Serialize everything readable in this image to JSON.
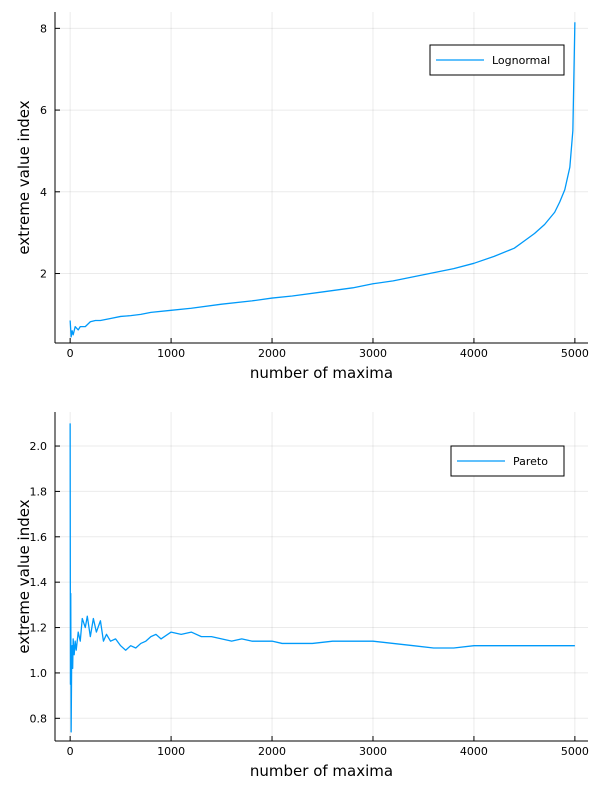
{
  "chart_data": [
    {
      "type": "line",
      "id": "top",
      "xlabel": "number of maxima",
      "ylabel": "extreme value index",
      "xlim": [
        -150,
        5130
      ],
      "ylim": [
        0.3,
        8.4
      ],
      "xticks": [
        0,
        1000,
        2000,
        3000,
        4000,
        5000
      ],
      "xtick_labels": [
        "0",
        "1000",
        "2000",
        "3000",
        "4000",
        "5000"
      ],
      "yticks": [
        2,
        4,
        6,
        8
      ],
      "ytick_labels": [
        "2",
        "4",
        "6",
        "8"
      ],
      "grid": true,
      "legend_position": "top-right",
      "series": [
        {
          "name": "Lognormal",
          "color": "#009AFA",
          "x": [
            0,
            10,
            20,
            30,
            50,
            80,
            100,
            150,
            200,
            250,
            300,
            400,
            500,
            600,
            700,
            800,
            1000,
            1200,
            1500,
            1800,
            2000,
            2200,
            2500,
            2800,
            3000,
            3200,
            3500,
            3800,
            4000,
            4200,
            4400,
            4500,
            4600,
            4700,
            4800,
            4850,
            4900,
            4950,
            4980,
            5000
          ],
          "y": [
            0.85,
            0.45,
            0.6,
            0.5,
            0.7,
            0.62,
            0.7,
            0.7,
            0.82,
            0.85,
            0.85,
            0.9,
            0.95,
            0.97,
            1.0,
            1.05,
            1.1,
            1.15,
            1.25,
            1.33,
            1.4,
            1.45,
            1.55,
            1.65,
            1.75,
            1.82,
            1.97,
            2.12,
            2.25,
            2.42,
            2.62,
            2.8,
            2.98,
            3.2,
            3.5,
            3.75,
            4.05,
            4.6,
            5.5,
            8.15
          ]
        }
      ]
    },
    {
      "type": "line",
      "id": "bottom",
      "xlabel": "number of maxima",
      "ylabel": "extreme value index",
      "xlim": [
        -150,
        5130
      ],
      "ylim": [
        0.7,
        2.15
      ],
      "xticks": [
        0,
        1000,
        2000,
        3000,
        4000,
        5000
      ],
      "xtick_labels": [
        "0",
        "1000",
        "2000",
        "3000",
        "4000",
        "5000"
      ],
      "yticks": [
        0.8,
        1.0,
        1.2,
        1.4,
        1.6,
        1.8,
        2.0
      ],
      "ytick_labels": [
        "0.8",
        "1.0",
        "1.2",
        "1.4",
        "1.6",
        "1.8",
        "2.0"
      ],
      "grid": true,
      "legend_position": "top-right",
      "series": [
        {
          "name": "Pareto",
          "color": "#009AFA",
          "x": [
            0,
            3,
            6,
            10,
            15,
            20,
            25,
            30,
            40,
            50,
            60,
            80,
            100,
            120,
            150,
            170,
            200,
            230,
            260,
            300,
            330,
            360,
            400,
            450,
            500,
            550,
            600,
            650,
            700,
            750,
            800,
            850,
            900,
            1000,
            1100,
            1200,
            1300,
            1400,
            1500,
            1600,
            1700,
            1800,
            1900,
            2000,
            2100,
            2200,
            2400,
            2600,
            2800,
            3000,
            3200,
            3400,
            3600,
            3800,
            4000,
            4200,
            4400,
            4600,
            4800,
            5000
          ],
          "y": [
            2.1,
            0.95,
            1.35,
            0.74,
            1.05,
            1.12,
            1.02,
            1.15,
            1.08,
            1.14,
            1.1,
            1.18,
            1.14,
            1.24,
            1.2,
            1.25,
            1.16,
            1.24,
            1.18,
            1.23,
            1.14,
            1.17,
            1.14,
            1.15,
            1.12,
            1.1,
            1.12,
            1.11,
            1.13,
            1.14,
            1.16,
            1.17,
            1.15,
            1.18,
            1.17,
            1.18,
            1.16,
            1.16,
            1.15,
            1.14,
            1.15,
            1.14,
            1.14,
            1.14,
            1.13,
            1.13,
            1.13,
            1.14,
            1.14,
            1.14,
            1.13,
            1.12,
            1.11,
            1.11,
            1.12,
            1.12,
            1.12,
            1.12,
            1.12,
            1.12
          ]
        }
      ]
    }
  ]
}
